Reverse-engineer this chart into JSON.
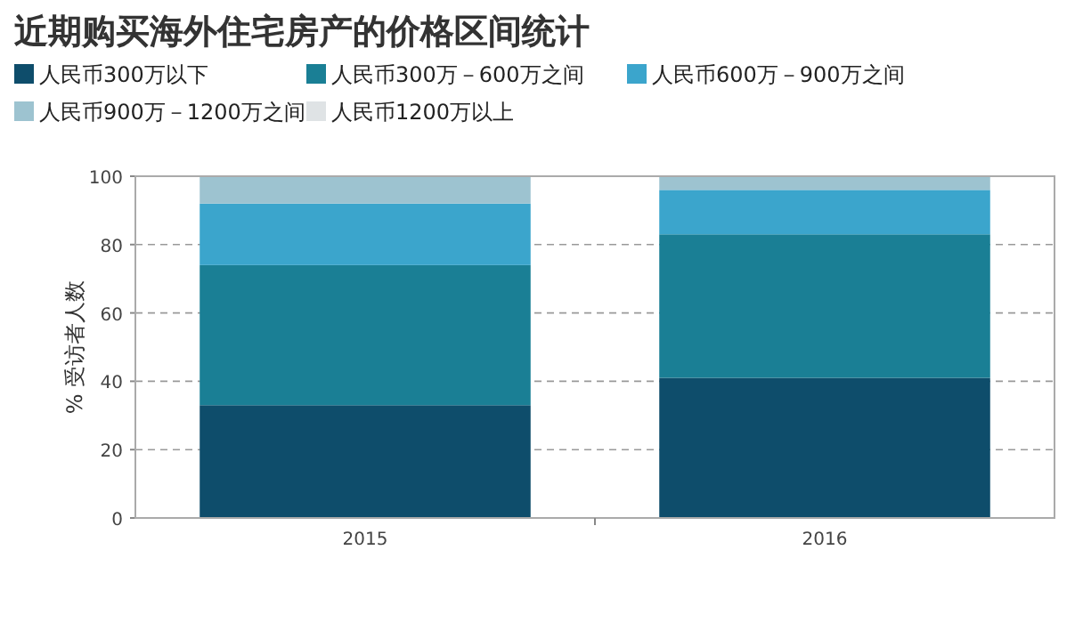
{
  "chart_data": {
    "type": "bar",
    "stacked": true,
    "title": "近期购买海外住宅房产的价格区间统计",
    "ylabel": "% 受访者人数",
    "categories": [
      "2015",
      "2016"
    ],
    "series": [
      {
        "name": "人民币300万以下",
        "color": "#0e4d6b",
        "values": [
          33,
          41
        ]
      },
      {
        "name": "人民币300万－600万之间",
        "color": "#1a7f95",
        "values": [
          41,
          42
        ]
      },
      {
        "name": "人民币600万－900万之间",
        "color": "#3ba5cc",
        "values": [
          18,
          13
        ]
      },
      {
        "name": "人民币900万－1200万之间",
        "color": "#9dc3d0",
        "values": [
          8,
          4
        ]
      },
      {
        "name": "人民币1200万以上",
        "color": "#dfe3e5",
        "values": [
          0,
          0
        ]
      }
    ],
    "ylim": [
      0,
      100
    ],
    "yticks": [
      0,
      20,
      40,
      60,
      80,
      100
    ],
    "grid": "y",
    "legend": "top"
  }
}
